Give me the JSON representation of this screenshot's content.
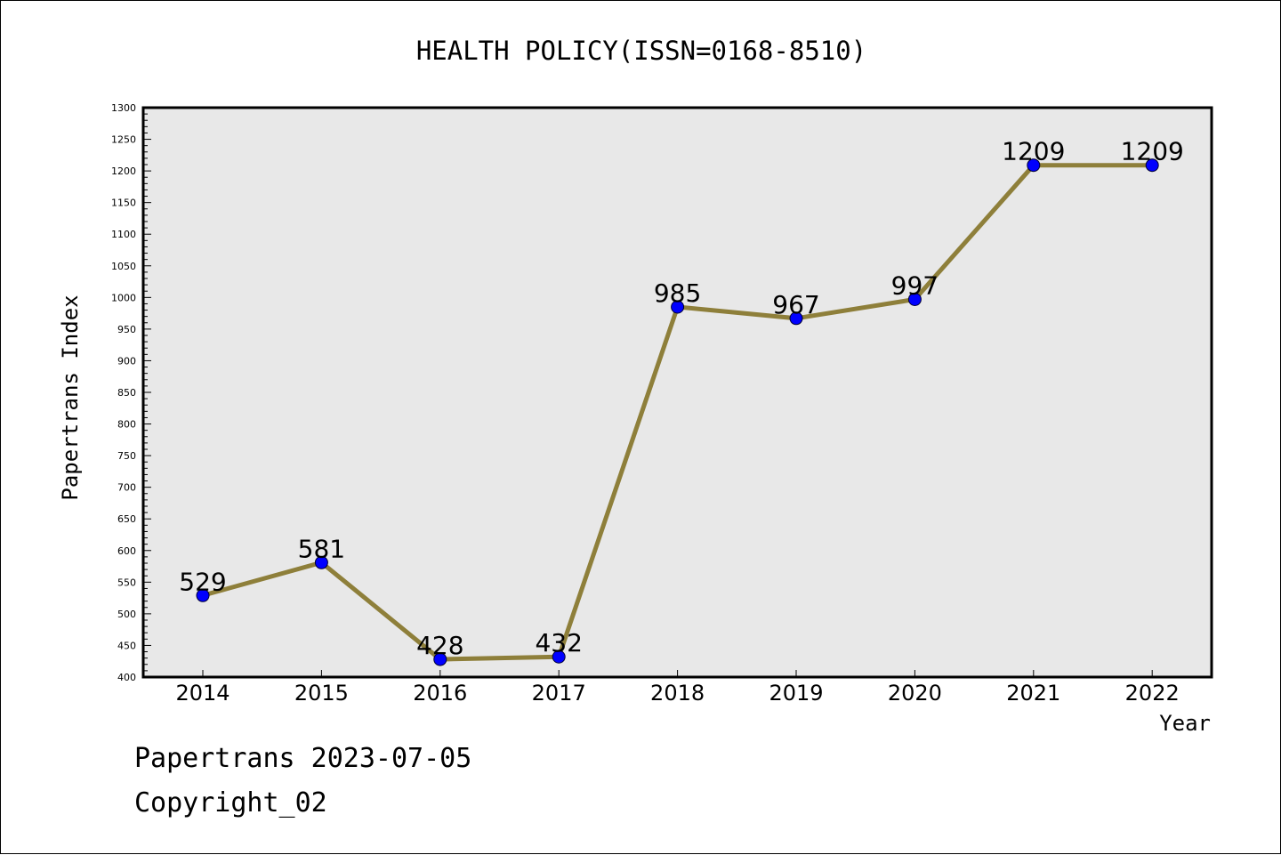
{
  "chart_data": {
    "type": "line",
    "title": "HEALTH POLICY(ISSN=0168-8510)",
    "xlabel": "Year",
    "ylabel": "Papertrans Index",
    "categories": [
      "2014",
      "2015",
      "2016",
      "2017",
      "2018",
      "2019",
      "2020",
      "2021",
      "2022"
    ],
    "values": [
      529,
      581,
      428,
      432,
      985,
      967,
      997,
      1209,
      1209
    ],
    "data_labels": [
      "529",
      "581",
      "428",
      "432",
      "985",
      "967",
      "997",
      "1209",
      "1209"
    ],
    "ylim": [
      400,
      1300
    ],
    "yticks": [
      "400",
      "450",
      "500",
      "550",
      "600",
      "650",
      "700",
      "750",
      "800",
      "850",
      "900",
      "950",
      "1000",
      "1050",
      "1100",
      "1150",
      "1200",
      "1250",
      "1300"
    ],
    "grid": false,
    "legend": "none",
    "colors": {
      "line": "#8e7f3a",
      "marker": "#0000ff",
      "plot_background": "#e8e8e8"
    }
  },
  "footer": {
    "line1": "Papertrans 2023-07-05",
    "line2": "Copyright_02"
  }
}
